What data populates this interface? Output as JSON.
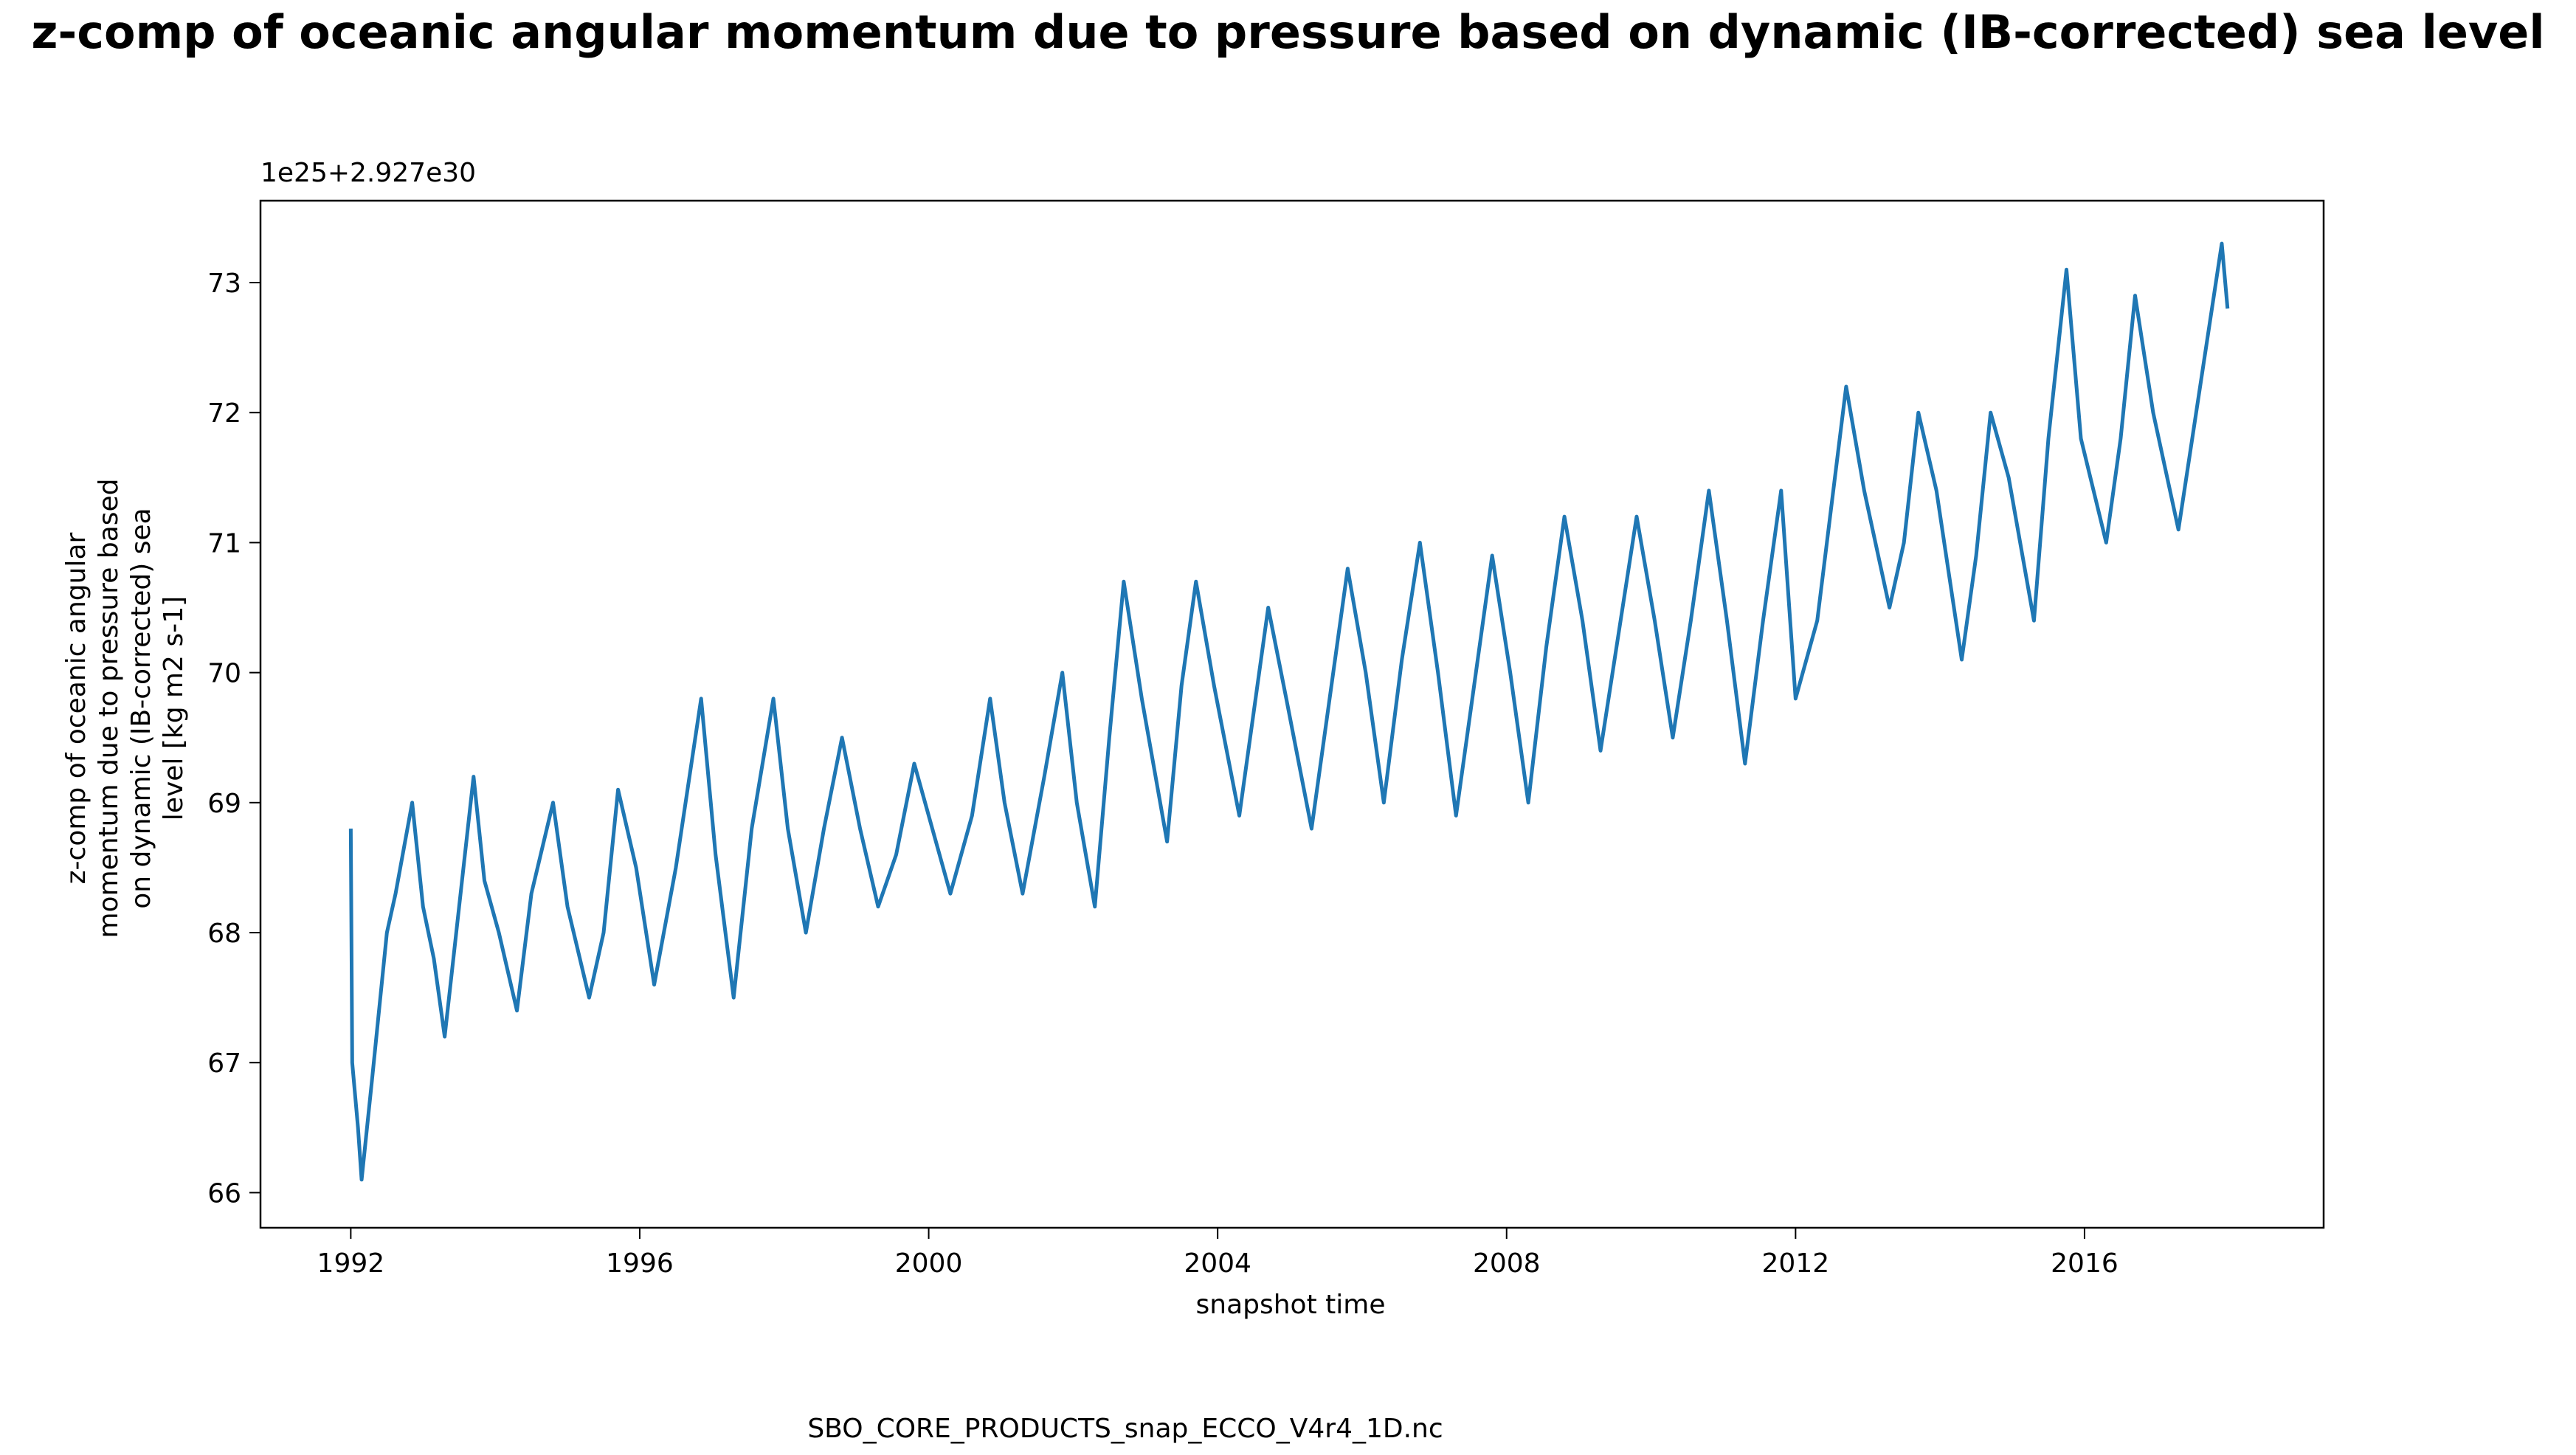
{
  "chart_data": {
    "type": "line",
    "title": "z-comp of oceanic angular momentum due to pressure based on dynamic (IB-corrected) sea level",
    "y_label": "z-comp of oceanic angular momentum due to pressure based on dynamic (IB-corrected) sea level [kg m2 s-1]",
    "x_label": "snapshot time",
    "y_offset_label": "1e25+2.927e30",
    "footer": "SBO_CORE_PRODUCTS_snap_ECCO_V4r4_1D.nc",
    "x": [
      1992.0,
      1992.02,
      1992.1,
      1992.15,
      1992.3,
      1992.5,
      1992.62,
      1992.85,
      1993.0,
      1993.15,
      1993.3,
      1993.5,
      1993.7,
      1993.85,
      1994.05,
      1994.3,
      1994.5,
      1994.8,
      1995.0,
      1995.3,
      1995.5,
      1995.7,
      1995.95,
      1996.2,
      1996.5,
      1996.85,
      1997.05,
      1997.3,
      1997.55,
      1997.85,
      1998.05,
      1998.3,
      1998.55,
      1998.8,
      1999.05,
      1999.3,
      1999.55,
      1999.8,
      2000.05,
      2000.3,
      2000.6,
      2000.85,
      2001.05,
      2001.3,
      2001.6,
      2001.85,
      2002.05,
      2002.3,
      2002.5,
      2002.7,
      2002.95,
      2003.3,
      2003.5,
      2003.7,
      2003.95,
      2004.3,
      2004.5,
      2004.7,
      2004.95,
      2005.3,
      2005.55,
      2005.8,
      2006.05,
      2006.3,
      2006.55,
      2006.8,
      2007.05,
      2007.3,
      2007.55,
      2007.8,
      2008.05,
      2008.3,
      2008.55,
      2008.8,
      2009.05,
      2009.3,
      2009.55,
      2009.8,
      2010.05,
      2010.3,
      2010.55,
      2010.8,
      2011.05,
      2011.3,
      2011.55,
      2011.8,
      2012.0,
      2012.3,
      2012.7,
      2012.95,
      2013.3,
      2013.5,
      2013.7,
      2013.95,
      2014.3,
      2014.5,
      2014.7,
      2014.95,
      2015.3,
      2015.5,
      2015.75,
      2015.95,
      2016.3,
      2016.5,
      2016.7,
      2016.95,
      2017.3,
      2017.6,
      2017.9,
      2017.98
    ],
    "series": [
      {
        "name": "z-comp of oceanic angular momentum due to pressure based on dynamic (IB-corrected) sea level",
        "color": "#1f77b4",
        "values": [
          68.8,
          67.0,
          66.5,
          66.1,
          66.9,
          68.0,
          68.3,
          69.0,
          68.2,
          67.8,
          67.2,
          68.2,
          69.2,
          68.4,
          68.0,
          67.4,
          68.3,
          69.0,
          68.2,
          67.5,
          68.0,
          69.1,
          68.5,
          67.6,
          68.5,
          69.8,
          68.6,
          67.5,
          68.8,
          69.8,
          68.8,
          68.0,
          68.8,
          69.5,
          68.8,
          68.2,
          68.6,
          69.3,
          68.8,
          68.3,
          68.9,
          69.8,
          69.0,
          68.3,
          69.2,
          70.0,
          69.0,
          68.2,
          69.5,
          70.7,
          69.8,
          68.7,
          69.9,
          70.7,
          69.9,
          68.9,
          69.7,
          70.5,
          69.8,
          68.8,
          69.8,
          70.8,
          70.0,
          69.0,
          70.1,
          71.0,
          70.0,
          68.9,
          69.9,
          70.9,
          70.0,
          69.0,
          70.2,
          71.2,
          70.4,
          69.4,
          70.3,
          71.2,
          70.4,
          69.5,
          70.4,
          71.4,
          70.4,
          69.3,
          70.4,
          71.4,
          69.8,
          70.4,
          72.2,
          71.4,
          70.5,
          71.0,
          72.0,
          71.4,
          70.1,
          70.9,
          72.0,
          71.5,
          70.4,
          71.8,
          73.1,
          71.8,
          71.0,
          71.8,
          72.9,
          72.0,
          71.1,
          72.2,
          73.3,
          72.8
        ]
      }
    ],
    "xlim": [
      1990.75,
      2019.31
    ],
    "ylim": [
      65.73,
      73.63
    ],
    "xticks": [
      1992,
      1996,
      2000,
      2004,
      2008,
      2012,
      2016
    ],
    "yticks": [
      66,
      67,
      68,
      69,
      70,
      71,
      72,
      73
    ],
    "grid": false
  }
}
